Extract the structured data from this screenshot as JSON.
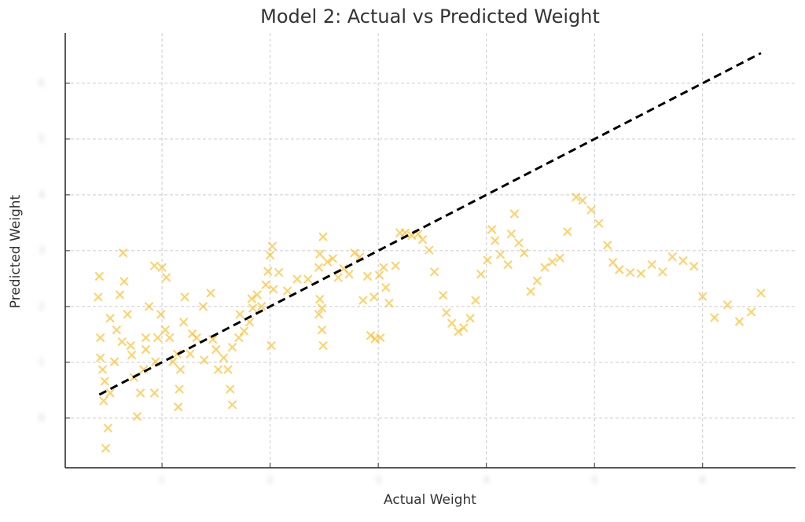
{
  "chart_data": {
    "type": "scatter",
    "title": "Model 2: Actual vs Predicted Weight",
    "x_label": "Actual Weight",
    "y_label": "Predicted Weight",
    "xlim": [
      0.105,
      6.86
    ],
    "ylim": [
      -0.89,
      6.9
    ],
    "xticks": [
      1,
      2,
      3,
      4,
      5,
      6
    ],
    "yticks": [
      0,
      1,
      2,
      3,
      4,
      5,
      6
    ],
    "grid": true,
    "marker": "x",
    "color": "#ffb000",
    "reference_line": {
      "x": [
        0.42,
        6.54
      ],
      "y": [
        0.42,
        6.54
      ],
      "color": "#000000"
    },
    "x": [
      6.54,
      6.45,
      6.34,
      6.23,
      6.11,
      6.0,
      5.92,
      5.82,
      5.72,
      5.63,
      5.53,
      5.43,
      5.33,
      5.23,
      5.17,
      5.12,
      5.04,
      4.97,
      4.89,
      4.83,
      4.75,
      4.68,
      4.61,
      4.54,
      4.47,
      4.41,
      4.35,
      4.3,
      4.26,
      4.23,
      4.2,
      4.13,
      4.08,
      4.05,
      4.01,
      3.95,
      3.9,
      3.85,
      3.79,
      3.74,
      3.68,
      3.63,
      3.6,
      3.52,
      3.47,
      3.41,
      3.37,
      3.31,
      3.25,
      3.2,
      3.16,
      3.1,
      3.07,
      3.02,
      2.97,
      2.93,
      2.96,
      3.01,
      3.05,
      2.9,
      2.86,
      2.83,
      2.78,
      2.73,
      2.68,
      2.63,
      2.58,
      2.53,
      2.49,
      2.46,
      2.45,
      2.46,
      2.48,
      2.49,
      2.48,
      2.45,
      2.35,
      2.25,
      2.16,
      2.08,
      2.02,
      2.0,
      1.98,
      1.96,
      1.92,
      1.88,
      1.84,
      1.81,
      1.76,
      1.71,
      1.65,
      1.61,
      1.63,
      1.65,
      1.57,
      1.52,
      1.47,
      1.45,
      1.38,
      1.32,
      1.26,
      1.21,
      1.2,
      1.17,
      1.16,
      1.15,
      1.1,
      1.07,
      1.04,
      1.0,
      0.99,
      0.96,
      0.94,
      0.93,
      0.93,
      0.88,
      0.85,
      0.83,
      0.8,
      0.77,
      0.74,
      0.71,
      0.68,
      0.65,
      0.64,
      0.61,
      0.58,
      0.56,
      0.52,
      0.5,
      0.48,
      0.46,
      0.45,
      0.43,
      0.42,
      0.41,
      0.43,
      0.47,
      0.52,
      0.63,
      0.72,
      0.85,
      1.03,
      1.14,
      1.28,
      1.39,
      1.5,
      1.72,
      1.83,
      2.01,
      2.03
    ],
    "values": [
      2.24,
      1.9,
      1.73,
      2.03,
      1.8,
      2.18,
      2.72,
      2.82,
      2.89,
      2.62,
      2.75,
      2.59,
      2.61,
      2.66,
      2.79,
      3.1,
      3.49,
      3.73,
      3.9,
      3.96,
      3.34,
      2.87,
      2.8,
      2.7,
      2.46,
      2.27,
      2.96,
      3.14,
      3.66,
      3.3,
      2.75,
      2.93,
      3.18,
      3.38,
      2.83,
      2.58,
      2.11,
      1.79,
      1.62,
      1.55,
      1.7,
      1.89,
      2.2,
      2.62,
      3.01,
      3.2,
      3.3,
      3.27,
      3.32,
      3.32,
      2.73,
      2.06,
      2.34,
      1.44,
      1.42,
      1.48,
      2.17,
      2.56,
      2.7,
      2.54,
      2.11,
      2.89,
      2.96,
      2.58,
      2.68,
      2.52,
      2.86,
      2.8,
      3.25,
      2.94,
      2.7,
      2.13,
      1.97,
      1.3,
      1.58,
      1.86,
      2.49,
      2.49,
      2.28,
      2.61,
      3.08,
      2.92,
      2.63,
      2.39,
      2.0,
      2.21,
      1.97,
      1.72,
      1.56,
      1.44,
      1.27,
      0.87,
      0.52,
      0.24,
      1.08,
      0.87,
      1.41,
      2.24,
      2.0,
      1.44,
      1.15,
      2.17,
      1.72,
      0.87,
      0.52,
      0.2,
      1.01,
      1.44,
      2.52,
      2.7,
      1.86,
      1.44,
      1.01,
      0.45,
      2.73,
      2.0,
      1.44,
      0.87,
      0.45,
      0.03,
      0.73,
      1.3,
      1.86,
      2.45,
      2.96,
      2.21,
      1.58,
      1.01,
      0.45,
      -0.18,
      -0.54,
      0.31,
      0.87,
      1.44,
      2.54,
      2.17,
      1.08,
      0.66,
      1.79,
      1.37,
      1.13,
      1.23,
      1.58,
      1.15,
      1.51,
      1.04,
      1.23,
      1.86,
      2.14,
      1.3,
      2.31
    ]
  }
}
